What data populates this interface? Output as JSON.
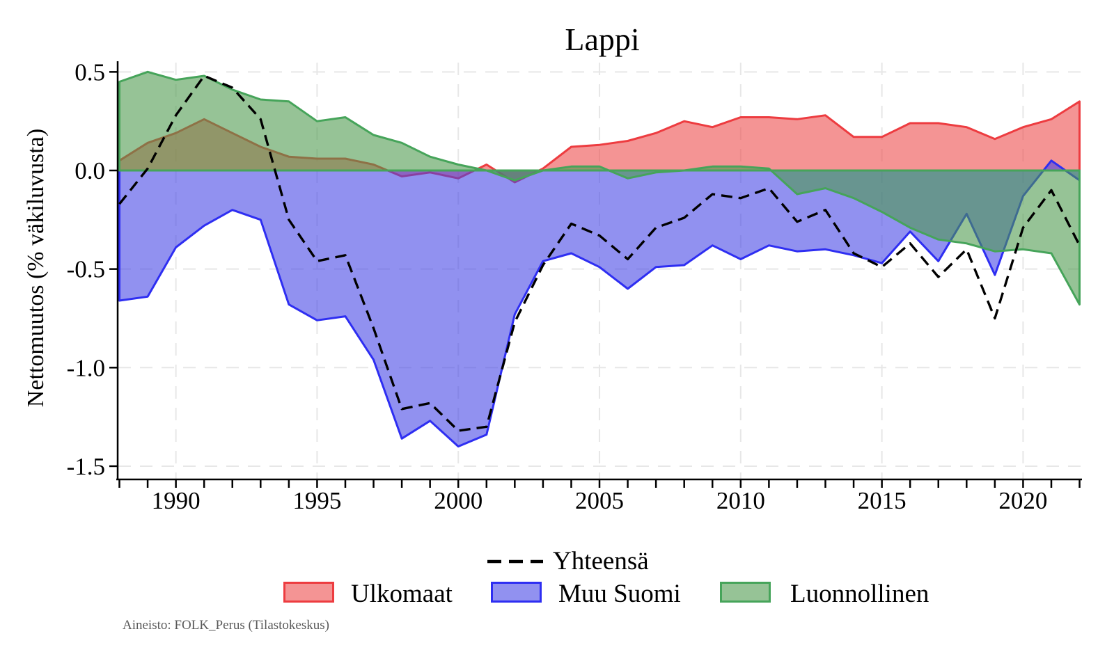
{
  "chart_data": {
    "type": "area",
    "title": "Lappi",
    "ylabel": "Nettomuutos (% väkiluvusta)",
    "source_note": "Aineisto: FOLK_Perus (Tilastokeskus)",
    "x": [
      1988,
      1989,
      1990,
      1991,
      1992,
      1993,
      1994,
      1995,
      1996,
      1997,
      1998,
      1999,
      2000,
      2001,
      2002,
      2003,
      2004,
      2005,
      2006,
      2007,
      2008,
      2009,
      2010,
      2011,
      2012,
      2013,
      2014,
      2015,
      2016,
      2017,
      2018,
      2019,
      2020,
      2021,
      2022
    ],
    "xticks": [
      1990,
      1995,
      2000,
      2005,
      2010,
      2015,
      2020
    ],
    "yticks": [
      0.5,
      0.0,
      -0.5,
      -1.0,
      -1.5
    ],
    "grid_y": [
      0.5,
      -0.5,
      -1.0,
      -1.5
    ],
    "ylim": [
      -1.57,
      0.55
    ],
    "grid": "dashed-light",
    "grid_color": "#e7e7e7",
    "axis_color": "#000000",
    "legend_position": "bottom-center",
    "series": [
      {
        "name": "Yhteensä",
        "type": "line",
        "style": "dashed",
        "color": "#000000",
        "values": [
          -0.17,
          0.01,
          0.28,
          0.48,
          0.42,
          0.26,
          -0.25,
          -0.46,
          -0.43,
          -0.8,
          -1.21,
          -1.18,
          -1.32,
          -1.3,
          -0.77,
          -0.48,
          -0.27,
          -0.33,
          -0.45,
          -0.29,
          -0.24,
          -0.12,
          -0.14,
          -0.09,
          -0.26,
          -0.2,
          -0.42,
          -0.49,
          -0.37,
          -0.54,
          -0.4,
          -0.75,
          -0.29,
          -0.1,
          -0.38
        ]
      },
      {
        "name": "Ulkomaat",
        "type": "area",
        "stroke": "#ed3c40",
        "fill": "rgba(236,70,70,0.58)",
        "values": [
          0.05,
          0.14,
          0.19,
          0.26,
          0.19,
          0.12,
          0.07,
          0.06,
          0.06,
          0.03,
          -0.03,
          -0.01,
          -0.04,
          0.03,
          -0.06,
          0.01,
          0.12,
          0.13,
          0.15,
          0.19,
          0.25,
          0.22,
          0.27,
          0.27,
          0.26,
          0.28,
          0.17,
          0.17,
          0.24,
          0.24,
          0.22,
          0.16,
          0.22,
          0.26,
          0.35
        ]
      },
      {
        "name": "Muu Suomi",
        "type": "area",
        "stroke": "#2e2ef2",
        "fill": "rgba(65,65,229,0.58)",
        "values": [
          -0.66,
          -0.64,
          -0.39,
          -0.28,
          -0.2,
          -0.25,
          -0.68,
          -0.76,
          -0.74,
          -0.96,
          -1.36,
          -1.27,
          -1.4,
          -1.34,
          -0.73,
          -0.46,
          -0.42,
          -0.49,
          -0.6,
          -0.49,
          -0.48,
          -0.38,
          -0.45,
          -0.38,
          -0.41,
          -0.4,
          -0.43,
          -0.47,
          -0.31,
          -0.46,
          -0.22,
          -0.53,
          -0.13,
          0.05,
          -0.05
        ]
      },
      {
        "name": "Luonnollinen",
        "type": "area",
        "stroke": "#46a45a",
        "fill": "rgba(74,152,74,0.58)",
        "values": [
          0.45,
          0.5,
          0.46,
          0.48,
          0.41,
          0.36,
          0.35,
          0.25,
          0.27,
          0.18,
          0.14,
          0.07,
          0.03,
          0.0,
          -0.05,
          0.0,
          0.02,
          0.02,
          -0.04,
          -0.01,
          0.0,
          0.02,
          0.02,
          0.01,
          -0.12,
          -0.09,
          -0.14,
          -0.21,
          -0.29,
          -0.35,
          -0.37,
          -0.41,
          -0.4,
          -0.42,
          -0.68
        ]
      }
    ]
  }
}
